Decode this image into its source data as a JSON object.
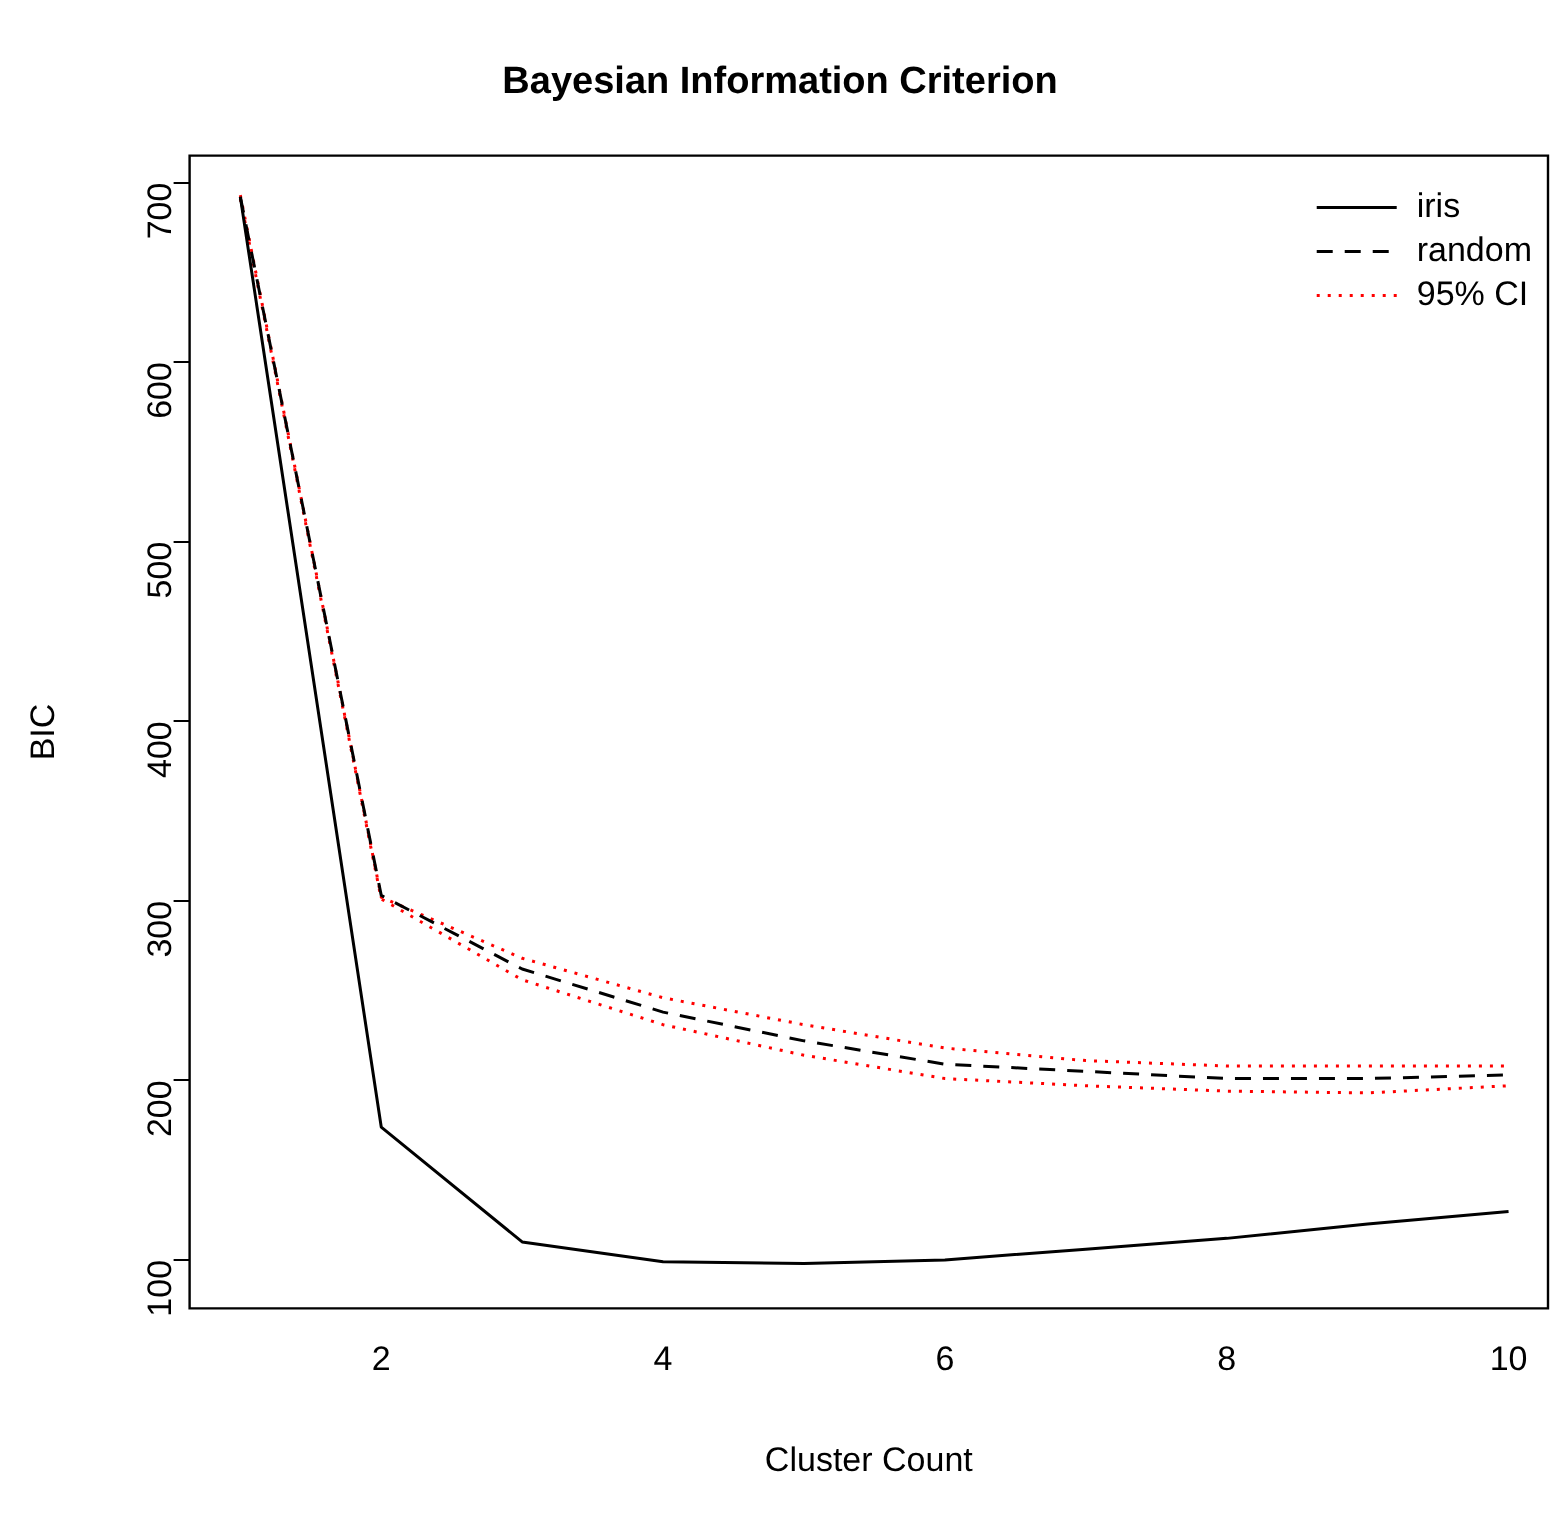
{
  "chart_data": {
    "type": "line",
    "title": "Bayesian Information Criterion",
    "xlabel": "Cluster Count",
    "ylabel": "BIC",
    "x": [
      1,
      2,
      3,
      4,
      5,
      6,
      7,
      8,
      9,
      10
    ],
    "series": [
      {
        "name": "iris",
        "color": "#000000",
        "line_style": "solid",
        "values": [
          692,
          174,
          110,
          99,
          98,
          100,
          106,
          112,
          120,
          127
        ]
      },
      {
        "name": "random",
        "color": "#000000",
        "line_style": "dashed",
        "values": [
          692,
          303,
          262,
          238,
          222,
          209,
          205,
          201,
          201,
          203
        ]
      },
      {
        "name": "95% CI",
        "color": "#ff0000",
        "line_style": "dotted",
        "values": [
          693,
          302,
          268,
          246,
          231,
          218,
          211,
          208,
          208,
          208
        ]
      },
      {
        "color": "#ff0000",
        "line_style": "dotted",
        "values": [
          691,
          301,
          256,
          231,
          214,
          201,
          197,
          194,
          193,
          197
        ]
      }
    ],
    "xlim": [
      0.64,
      10.28
    ],
    "ylim": [
      73,
      715
    ],
    "xticks": [
      2,
      4,
      6,
      8,
      10
    ],
    "yticks": [
      100,
      200,
      300,
      400,
      500,
      600,
      700
    ],
    "grid": false,
    "legend": "top right",
    "marker": "none"
  }
}
